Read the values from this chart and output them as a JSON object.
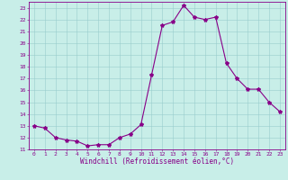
{
  "x": [
    0,
    1,
    2,
    3,
    4,
    5,
    6,
    7,
    8,
    9,
    10,
    11,
    12,
    13,
    14,
    15,
    16,
    17,
    18,
    19,
    20,
    21,
    22,
    23
  ],
  "y": [
    13.0,
    12.8,
    12.0,
    11.8,
    11.7,
    11.3,
    11.4,
    11.4,
    12.0,
    12.3,
    13.1,
    17.3,
    21.5,
    21.8,
    23.2,
    22.2,
    22.0,
    22.2,
    18.3,
    17.0,
    16.1,
    16.1,
    15.0,
    14.2
  ],
  "title": "",
  "xlabel": "Windchill (Refroidissement éolien,°C)",
  "ylabel": "",
  "ylim": [
    11,
    23.5
  ],
  "xlim": [
    -0.5,
    23.5
  ],
  "yticks": [
    11,
    12,
    13,
    14,
    15,
    16,
    17,
    18,
    19,
    20,
    21,
    22,
    23
  ],
  "xticks": [
    0,
    1,
    2,
    3,
    4,
    5,
    6,
    7,
    8,
    9,
    10,
    11,
    12,
    13,
    14,
    15,
    16,
    17,
    18,
    19,
    20,
    21,
    22,
    23
  ],
  "line_color": "#880088",
  "marker": "*",
  "bg_color": "#C8EEE8",
  "grid_color": "#99CCCC",
  "tick_label_color": "#880088",
  "xlabel_color": "#880088",
  "axis_line_color": "#880088",
  "marker_size": 3,
  "line_width": 0.8,
  "xlabel_fontsize": 5.5,
  "tick_fontsize": 4.5
}
